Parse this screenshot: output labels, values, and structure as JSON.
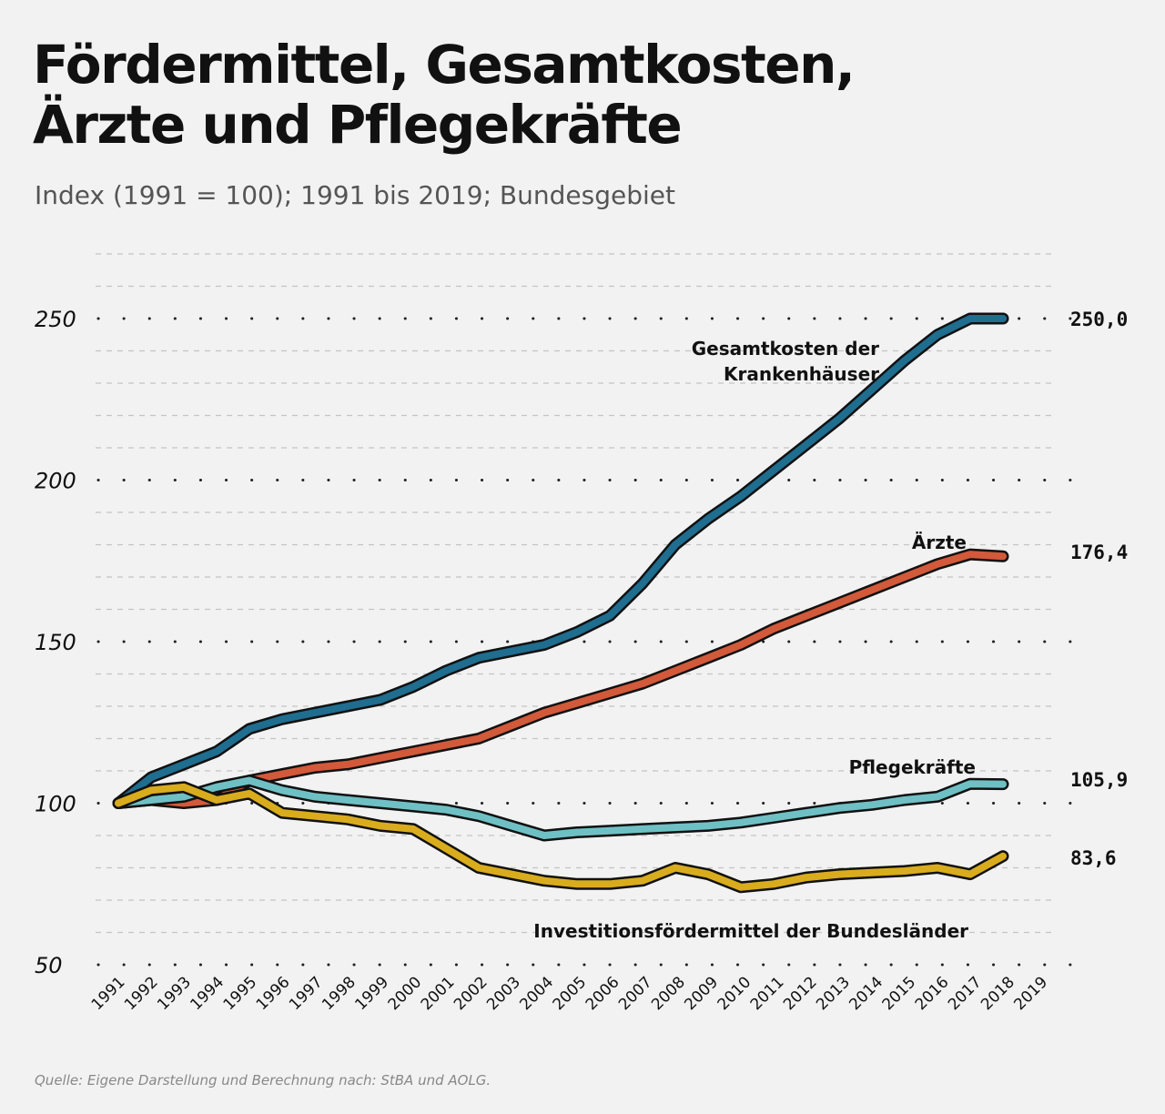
{
  "title_line1": "Fördermittel, Gesamtkosten,",
  "title_line2": "Ärzte und Pflegekräfte",
  "subtitle": "Index (1991 = 100); 1991 bis 2019; Bundesgebiet",
  "source": "Quelle: Eigene Darstellung und Berechnung nach: StBA und AOLG.",
  "chart_data": {
    "type": "line",
    "title": "Fördermittel, Gesamtkosten, Ärzte und Pflegekräfte",
    "subtitle": "Index (1991 = 100); 1991 bis 2019; Bundesgebiet",
    "xlabel": "",
    "ylabel": "",
    "x": [
      "1991",
      "1992",
      "1993",
      "1994",
      "1995",
      "1996",
      "1997",
      "1998",
      "1999",
      "2000",
      "2001",
      "2002",
      "2003",
      "2004",
      "2005",
      "2006",
      "2007",
      "2008",
      "2009",
      "2010",
      "2011",
      "2012",
      "2013",
      "2014",
      "2015",
      "2016",
      "2017",
      "2018",
      "2019"
    ],
    "ylim": [
      50,
      250
    ],
    "yticks": [
      "50",
      "100",
      "150",
      "200",
      "250"
    ],
    "grid": true,
    "legend": "inline labels",
    "series": [
      {
        "name": "Gesamtkosten der Krankenhäuser",
        "color": "#1f6d8f",
        "end_label": "250,0",
        "values": [
          100,
          108,
          112,
          116,
          123,
          126,
          128,
          130,
          132,
          136,
          141,
          145,
          147,
          149,
          153,
          158,
          168,
          180,
          188,
          195,
          203,
          211,
          219,
          228,
          237,
          245,
          250,
          250,
          250
        ]
      },
      {
        "name": "Ärzte",
        "color": "#d2593a",
        "end_label": "176,4",
        "values": [
          100,
          101,
          100,
          101,
          107,
          109,
          111,
          112,
          114,
          116,
          118,
          120,
          124,
          128,
          131,
          134,
          137,
          141,
          145,
          149,
          154,
          158,
          162,
          166,
          170,
          174,
          177,
          176.4,
          176.4
        ]
      },
      {
        "name": "Pflegekräfte",
        "color": "#6fc0c4",
        "end_label": "105,9",
        "values": [
          100,
          101,
          102,
          105,
          107,
          104,
          102,
          101,
          100,
          99,
          98,
          96,
          93,
          90,
          91,
          91.5,
          92,
          92.5,
          93,
          94,
          95.5,
          97,
          98.5,
          99.5,
          101,
          102,
          106,
          105.9,
          105.9
        ]
      },
      {
        "name": "Investitionsfördermittel der Bundesländer",
        "color": "#d9ac1e",
        "end_label": "83,6",
        "values": [
          100,
          104,
          105,
          101,
          103,
          97,
          96,
          95,
          93,
          92,
          86,
          80,
          78,
          76,
          75,
          75,
          76,
          80,
          78,
          74,
          75,
          77,
          78,
          78.5,
          79,
          80,
          78,
          83.6,
          83.6
        ]
      }
    ]
  }
}
